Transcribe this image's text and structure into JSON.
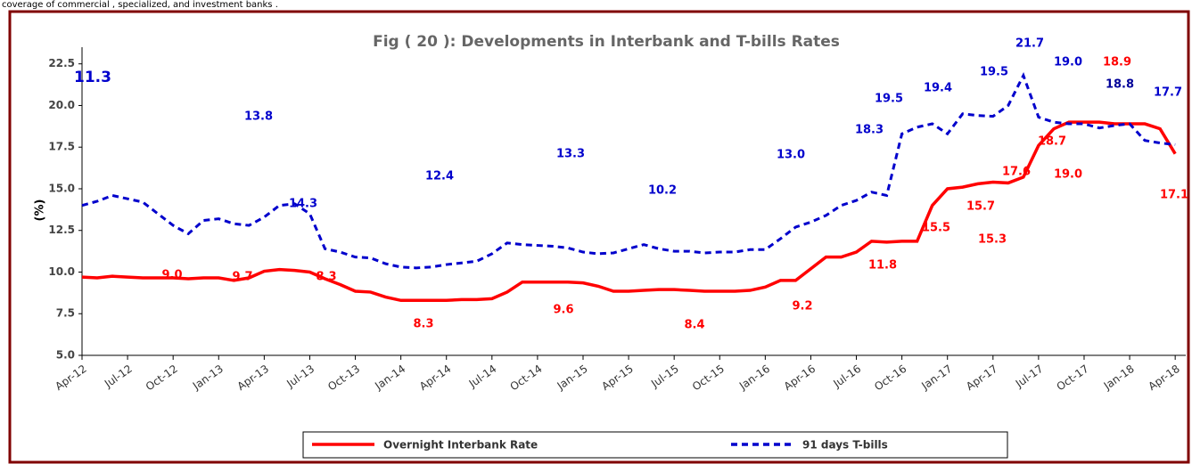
{
  "header": "coverage of commercial , specialized, and investment banks .",
  "chart_data": {
    "type": "line",
    "title": "Fig ( 20  ): Developments in Interbank and T-bills Rates",
    "ylabel": "(%)",
    "categories": [
      "Apr-12",
      null,
      null,
      "Jul-12",
      null,
      null,
      "Oct-12",
      null,
      null,
      "Jan-13",
      null,
      null,
      "Apr-13",
      null,
      null,
      "Jul-13",
      null,
      null,
      "Oct-13",
      null,
      null,
      "Jan-14",
      null,
      null,
      "Apr-14",
      null,
      null,
      "Jul-14",
      null,
      null,
      "Oct-14",
      null,
      null,
      "Jan-15",
      null,
      null,
      "Apr-15",
      null,
      null,
      "Jul-15",
      null,
      null,
      "Oct-15",
      null,
      null,
      "Jan-16",
      null,
      null,
      "Apr-16",
      null,
      null,
      "Jul-16",
      null,
      null,
      "Oct-16",
      null,
      null,
      "Jan-17",
      null,
      null,
      "Apr-17",
      null,
      null,
      "Jul-17",
      null,
      null,
      "Oct-17",
      null,
      null,
      "Jan-18",
      null,
      null,
      "Apr-18"
    ],
    "series": [
      {
        "name": "Overnight Interbank Rate",
        "color": "#ff0000",
        "dash": false,
        "values": [
          9.7,
          9.65,
          9.75,
          9.7,
          9.65,
          9.65,
          9.65,
          9.6,
          9.65,
          9.65,
          9.5,
          9.65,
          10.05,
          10.15,
          10.1,
          10.0,
          9.6,
          9.25,
          8.85,
          8.8,
          8.5,
          8.3,
          8.3,
          8.3,
          8.3,
          8.35,
          8.35,
          8.4,
          8.8,
          9.4,
          9.4,
          9.4,
          9.4,
          9.35,
          9.15,
          8.85,
          8.85,
          8.9,
          8.95,
          8.95,
          8.9,
          8.85,
          8.85,
          8.85,
          8.9,
          9.1,
          9.5,
          9.5,
          10.2,
          10.9,
          10.9,
          11.2,
          11.85,
          11.8,
          11.85,
          11.85,
          14.0,
          15.0,
          15.1,
          15.3,
          15.4,
          15.35,
          15.7,
          17.6,
          18.6,
          19.0,
          19.0,
          19.0,
          18.9,
          18.9,
          18.9,
          18.6,
          17.1
        ]
      },
      {
        "name": "91 days T-bills",
        "color": "#0000cc",
        "dash": true,
        "values": [
          14.0,
          14.25,
          14.6,
          14.4,
          14.2,
          13.5,
          12.8,
          12.3,
          13.1,
          13.2,
          12.9,
          12.8,
          13.3,
          14.0,
          14.1,
          13.5,
          11.4,
          11.2,
          10.9,
          10.85,
          10.5,
          10.3,
          10.25,
          10.3,
          10.45,
          10.55,
          10.65,
          11.1,
          11.75,
          11.65,
          11.6,
          11.55,
          11.45,
          11.2,
          11.1,
          11.15,
          11.4,
          11.65,
          11.4,
          11.25,
          11.25,
          11.15,
          11.2,
          11.2,
          11.35,
          11.35,
          12.0,
          12.7,
          13.0,
          13.4,
          14.0,
          14.3,
          14.8,
          14.6,
          18.3,
          18.7,
          18.9,
          18.3,
          19.5,
          19.4,
          19.35,
          20.0,
          21.8,
          19.3,
          19.0,
          18.9,
          18.9,
          18.65,
          18.8,
          18.9,
          17.9,
          17.75,
          17.65
        ]
      }
    ],
    "ylim": [
      5,
      23.5
    ],
    "yticks": [
      {
        "value": 5,
        "label": "5.0"
      },
      7.5,
      {
        "value": 10,
        "label": "10.0"
      },
      12.5,
      {
        "value": 15,
        "label": "15.0"
      },
      17.5,
      {
        "value": 20,
        "label": "20.0"
      },
      22.5
    ],
    "annotations": [
      {
        "label": "11.3",
        "color": "#0000cc"
      },
      {
        "label": "13.8",
        "color": "#0000cc"
      },
      {
        "label": "14.3",
        "color": "#0000cc"
      },
      {
        "label": "12.4",
        "color": "#0000cc"
      },
      {
        "label": "13.3",
        "color": "#0000cc"
      },
      {
        "label": "10.2",
        "color": "#0000cc"
      },
      {
        "label": "13.0",
        "color": "#0000cc"
      },
      {
        "label": "18.3",
        "color": "#0000cc"
      },
      {
        "label": "19.5",
        "color": "#0000cc"
      },
      {
        "label": "19.4",
        "color": "#0000cc"
      },
      {
        "label": "19.5",
        "color": "#0000cc"
      },
      {
        "label": "21.7",
        "color": "#0000cc"
      },
      {
        "label": "19.0",
        "color": "#0000cc"
      },
      {
        "label": "18.8",
        "color": "#000099"
      },
      {
        "label": "17.7",
        "color": "#0000cc"
      },
      {
        "label": "9.0",
        "color": "#ff0000"
      },
      {
        "label": "9.7",
        "color": "#ff0000"
      },
      {
        "label": "8.3",
        "color": "#ff0000"
      },
      {
        "label": "8.3",
        "color": "#ff0000"
      },
      {
        "label": "9.6",
        "color": "#ff0000"
      },
      {
        "label": "8.4",
        "color": "#ff0000"
      },
      {
        "label": "9.2",
        "color": "#ff0000"
      },
      {
        "label": "11.8",
        "color": "#ff0000"
      },
      {
        "label": "15.5",
        "color": "#ff0000"
      },
      {
        "label": "15.3",
        "color": "#ff0000"
      },
      {
        "label": "15.7",
        "color": "#ff0000"
      },
      {
        "label": "17.6",
        "color": "#ff0000"
      },
      {
        "label": "18.7",
        "color": "#ff0000"
      },
      {
        "label": "19.0",
        "color": "#ff0000"
      },
      {
        "label": "18.9",
        "color": "#ff0000"
      },
      {
        "label": "17.1",
        "color": "#ff0000"
      }
    ]
  }
}
